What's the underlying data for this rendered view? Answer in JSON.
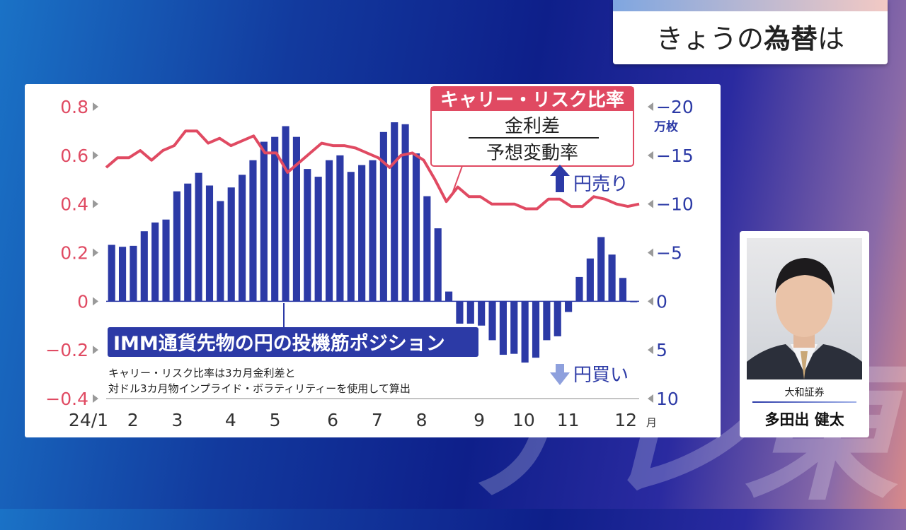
{
  "header": {
    "title_light": "きょうの",
    "title_bold": "為替",
    "title_tail": "は"
  },
  "presenter": {
    "affiliation": "大和証券",
    "name": "多田出 健太"
  },
  "watermark": "テレ東",
  "colors": {
    "risk_line": "#e04a62",
    "bars": "#2c3aa6",
    "right_axis": "#2c3aa6",
    "left_axis": "#e04a62"
  },
  "chart_data": {
    "type": "bar",
    "left_axis": {
      "ticks": [
        "0.8",
        "0.6",
        "0.4",
        "0.2",
        "0",
        "−0.2",
        "−0.4"
      ],
      "ylim": [
        -0.4,
        0.8
      ]
    },
    "right_axis": {
      "ticks": [
        "−20",
        "−15",
        "−10",
        "−5",
        "0",
        "5",
        "10"
      ],
      "unit": "万枚",
      "ylim": [
        10,
        -20
      ]
    },
    "x_ticks": [
      "24/1",
      "2",
      "3",
      "4",
      "5",
      "6",
      "7",
      "8",
      "9",
      "10",
      "11",
      "12"
    ],
    "x_unit": "月",
    "series": [
      {
        "name": "IMM通貨先物の円の投機筋ポジション",
        "axis": "right",
        "values": [
          -5.8,
          -5.6,
          -5.7,
          -7.2,
          -8.1,
          -8.4,
          -11.3,
          -12.1,
          -13.2,
          -11.9,
          -10.3,
          -11.7,
          -13.0,
          -14.5,
          -16.4,
          -16.9,
          -18.0,
          -16.9,
          -13.6,
          -12.8,
          -14.5,
          -15.0,
          -13.3,
          -14.0,
          -14.5,
          -17.4,
          -18.4,
          -18.2,
          -15.2,
          -10.8,
          -7.5,
          -1.0,
          2.3,
          2.3,
          2.5,
          4.0,
          5.5,
          5.4,
          6.3,
          5.8,
          4.0,
          3.6,
          1.1,
          -2.5,
          -4.4,
          -6.6,
          -4.8,
          -2.4,
          0.1
        ]
      },
      {
        "name": "キャリー・リスク比率",
        "axis": "left",
        "values": [
          0.55,
          0.59,
          0.59,
          0.62,
          0.58,
          0.62,
          0.64,
          0.7,
          0.7,
          0.65,
          0.67,
          0.64,
          0.66,
          0.68,
          0.61,
          0.61,
          0.53,
          0.57,
          0.61,
          0.65,
          0.64,
          0.64,
          0.63,
          0.61,
          0.59,
          0.55,
          0.6,
          0.61,
          0.58,
          0.5,
          0.41,
          0.47,
          0.43,
          0.43,
          0.4,
          0.4,
          0.4,
          0.38,
          0.38,
          0.42,
          0.42,
          0.39,
          0.39,
          0.43,
          0.42,
          0.4,
          0.39,
          0.4
        ]
      }
    ],
    "annotations": {
      "ratio_label": "キャリー・リスク比率",
      "numerator": "金利差",
      "denominator": "予想変動率",
      "yen_sell": "円売り",
      "yen_buy": "円買い",
      "series_label": "IMM通貨先物の円の投機筋ポジション",
      "note_line1": "キャリー・リスク比率は3カ月金利差と",
      "note_line2": "対ドル3カ月物インプライド・ボラティリティーを使用して算出"
    }
  }
}
